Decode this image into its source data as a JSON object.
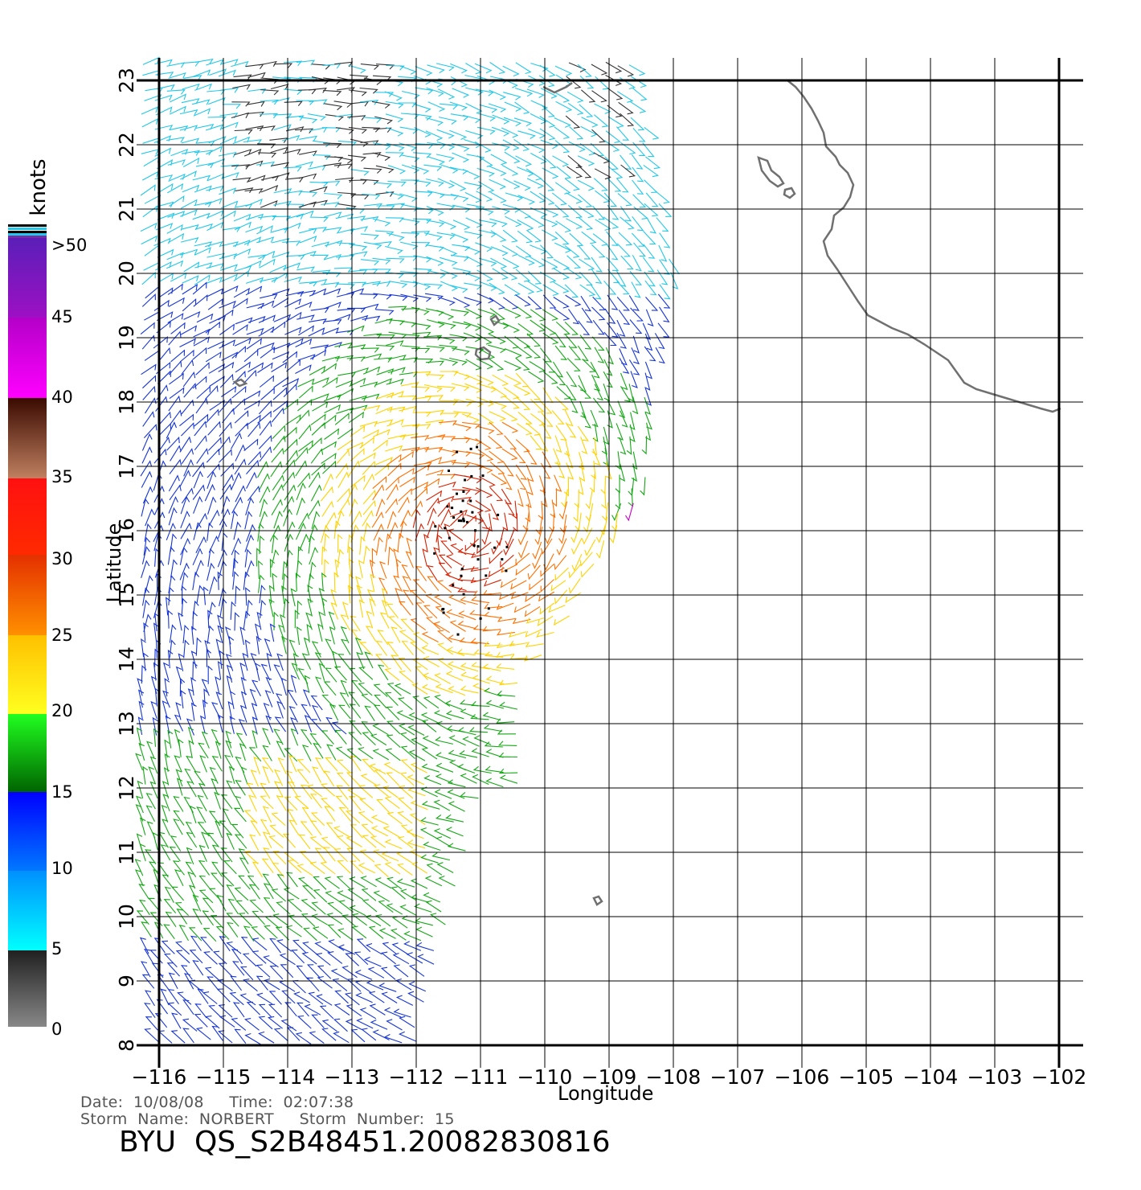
{
  "map": {
    "lon_ticks": [
      "-116",
      "-115",
      "-114",
      "-113",
      "-112",
      "-111",
      "-110",
      "-109",
      "-108",
      "-107",
      "-106",
      "-105",
      "-104",
      "-103",
      "-102"
    ],
    "lat_ticks": [
      "8",
      "9",
      "10",
      "11",
      "12",
      "13",
      "14",
      "15",
      "16",
      "17",
      "18",
      "19",
      "20",
      "21",
      "22",
      "23"
    ],
    "xlabel": "Longitude",
    "ylabel": "Latitude",
    "lon_range": [
      -116,
      -102
    ],
    "lat_range": [
      8,
      23
    ]
  },
  "colorbar": {
    "title": "knots",
    "labels": [
      ">50",
      "45",
      "40",
      "35",
      "30",
      "25",
      "20",
      "15",
      "10",
      "5",
      "0"
    ]
  },
  "info": {
    "date_line": "Date:  10/08/08     Time:  02:07:38",
    "storm_line": "Storm  Name:  NORBERT     Storm  Number:  15",
    "product": "BYU  QS_S2B48451.20082830816"
  },
  "colors": {
    "wind_0_5": "#333333",
    "wind_5_10": "#22c8e8",
    "wind_10_15": "#1535d6",
    "wind_15_20": "#13a813",
    "wind_20_25": "#ffd200",
    "wind_25_30": "#ff7000",
    "wind_30_35": "#d82000",
    "wind_40_45": "#cc00cc",
    "coast": "#707070"
  }
}
